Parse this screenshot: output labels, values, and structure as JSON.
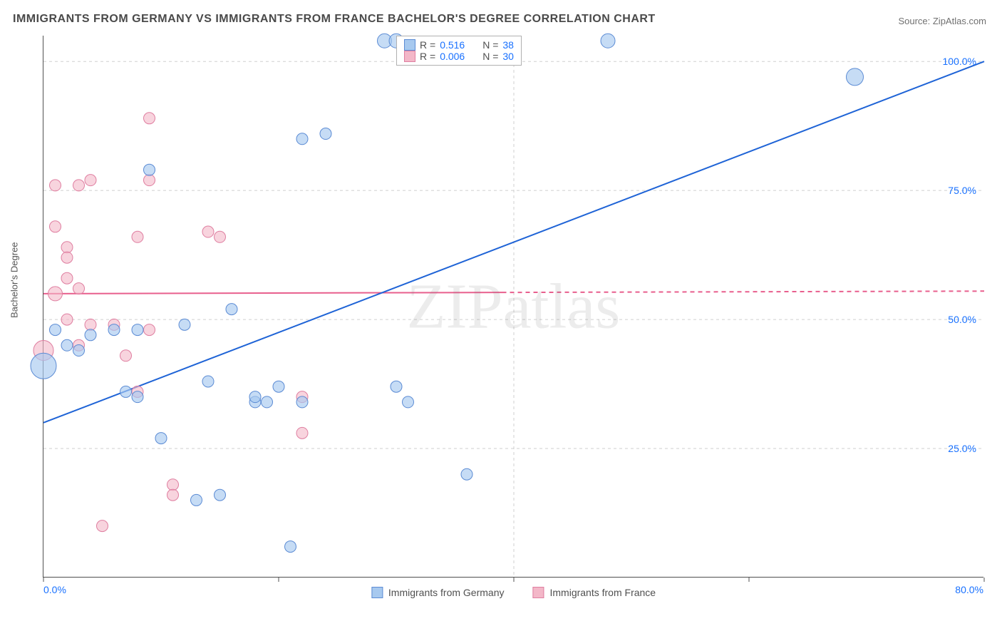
{
  "title": "IMMIGRANTS FROM GERMANY VS IMMIGRANTS FROM FRANCE BACHELOR'S DEGREE CORRELATION CHART",
  "source": "Source: ZipAtlas.com",
  "ylabel": "Bachelor's Degree",
  "watermark": "ZIPatlas",
  "chart": {
    "type": "scatter",
    "xlim": [
      0,
      80
    ],
    "ylim": [
      0,
      105
    ],
    "xticks": [
      0,
      80
    ],
    "xtick_labels": [
      "0.0%",
      "80.0%"
    ],
    "gridlines_x": [
      40
    ],
    "yticks": [
      25,
      50,
      75,
      100
    ],
    "ytick_labels": [
      "25.0%",
      "50.0%",
      "75.0%",
      "100.0%"
    ],
    "background_color": "#ffffff",
    "grid_color": "#cfcfcf",
    "axis_color": "#505050",
    "label_fontsize": 13,
    "tick_fontsize": 14,
    "title_fontsize": 16,
    "series": {
      "germany": {
        "label": "Immigrants from Germany",
        "fill": "#a7c9ef",
        "stroke": "#5b8bd4",
        "opacity": 0.65,
        "r_stat": "0.516",
        "n_stat": "38",
        "trend": {
          "x1": 0,
          "y1": 30,
          "x2": 80,
          "y2": 100,
          "color": "#1e63d6",
          "width": 2,
          "dash_after_x": 80
        },
        "points": [
          {
            "x": 0,
            "y": 41,
            "r": 18
          },
          {
            "x": 1,
            "y": 48,
            "r": 8
          },
          {
            "x": 2,
            "y": 45,
            "r": 8
          },
          {
            "x": 3,
            "y": 44,
            "r": 8
          },
          {
            "x": 4,
            "y": 47,
            "r": 8
          },
          {
            "x": 6,
            "y": 48,
            "r": 8
          },
          {
            "x": 8,
            "y": 35,
            "r": 8
          },
          {
            "x": 9,
            "y": 79,
            "r": 8
          },
          {
            "x": 7,
            "y": 36,
            "r": 8
          },
          {
            "x": 8,
            "y": 48,
            "r": 8
          },
          {
            "x": 10,
            "y": 27,
            "r": 8
          },
          {
            "x": 12,
            "y": 49,
            "r": 8
          },
          {
            "x": 13,
            "y": 15,
            "r": 8
          },
          {
            "x": 14,
            "y": 38,
            "r": 8
          },
          {
            "x": 15,
            "y": 16,
            "r": 8
          },
          {
            "x": 16,
            "y": 52,
            "r": 8
          },
          {
            "x": 18,
            "y": 34,
            "r": 8
          },
          {
            "x": 18,
            "y": 35,
            "r": 8
          },
          {
            "x": 19,
            "y": 34,
            "r": 8
          },
          {
            "x": 20,
            "y": 37,
            "r": 8
          },
          {
            "x": 21,
            "y": 6,
            "r": 8
          },
          {
            "x": 22,
            "y": 85,
            "r": 8
          },
          {
            "x": 22,
            "y": 34,
            "r": 8
          },
          {
            "x": 24,
            "y": 86,
            "r": 8
          },
          {
            "x": 29,
            "y": 104,
            "r": 10
          },
          {
            "x": 30,
            "y": 104,
            "r": 10
          },
          {
            "x": 30,
            "y": 37,
            "r": 8
          },
          {
            "x": 31,
            "y": 34,
            "r": 8
          },
          {
            "x": 36,
            "y": 20,
            "r": 8
          },
          {
            "x": 48,
            "y": 104,
            "r": 10
          },
          {
            "x": 69,
            "y": 97,
            "r": 12
          }
        ]
      },
      "france": {
        "label": "Immigrants from France",
        "fill": "#f3b7c8",
        "stroke": "#df7ea0",
        "opacity": 0.6,
        "r_stat": "0.006",
        "n_stat": "30",
        "trend": {
          "x1": 0,
          "y1": 55,
          "x2": 80,
          "y2": 55.5,
          "color": "#e85f8d",
          "width": 2,
          "dash_after_x": 39
        },
        "points": [
          {
            "x": 0,
            "y": 44,
            "r": 14
          },
          {
            "x": 1,
            "y": 68,
            "r": 8
          },
          {
            "x": 1,
            "y": 76,
            "r": 8
          },
          {
            "x": 1,
            "y": 55,
            "r": 10
          },
          {
            "x": 2,
            "y": 58,
            "r": 8
          },
          {
            "x": 2,
            "y": 64,
            "r": 8
          },
          {
            "x": 2,
            "y": 50,
            "r": 8
          },
          {
            "x": 2,
            "y": 62,
            "r": 8
          },
          {
            "x": 3,
            "y": 76,
            "r": 8
          },
          {
            "x": 3,
            "y": 56,
            "r": 8
          },
          {
            "x": 3,
            "y": 45,
            "r": 8
          },
          {
            "x": 4,
            "y": 49,
            "r": 8
          },
          {
            "x": 4,
            "y": 77,
            "r": 8
          },
          {
            "x": 5,
            "y": 10,
            "r": 8
          },
          {
            "x": 6,
            "y": 49,
            "r": 8
          },
          {
            "x": 7,
            "y": 43,
            "r": 8
          },
          {
            "x": 8,
            "y": 36,
            "r": 8
          },
          {
            "x": 8,
            "y": 66,
            "r": 8
          },
          {
            "x": 9,
            "y": 77,
            "r": 8
          },
          {
            "x": 9,
            "y": 48,
            "r": 8
          },
          {
            "x": 9,
            "y": 89,
            "r": 8
          },
          {
            "x": 11,
            "y": 18,
            "r": 8
          },
          {
            "x": 11,
            "y": 16,
            "r": 8
          },
          {
            "x": 14,
            "y": 67,
            "r": 8
          },
          {
            "x": 15,
            "y": 66,
            "r": 8
          },
          {
            "x": 22,
            "y": 35,
            "r": 8
          },
          {
            "x": 22,
            "y": 28,
            "r": 8
          },
          {
            "x": 33,
            "y": 103,
            "r": 8
          }
        ]
      }
    },
    "legend_top": {
      "r_label": "R =",
      "n_label": "N ="
    }
  }
}
